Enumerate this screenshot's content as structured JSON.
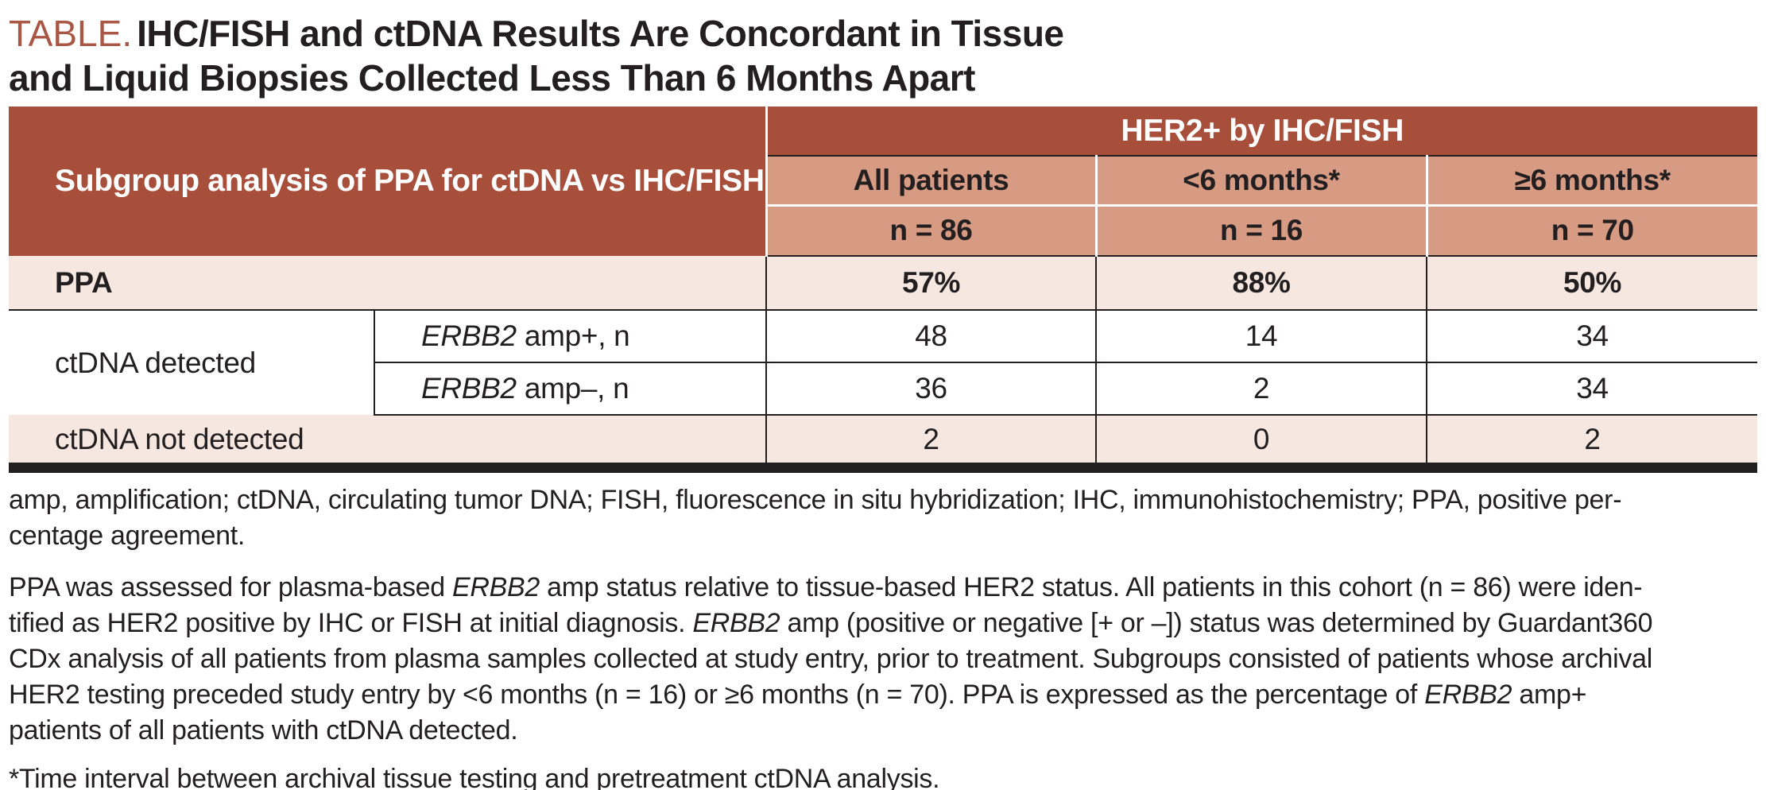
{
  "colors": {
    "header_dark": "#A84F3C",
    "header_salmon": "#D69B82",
    "row_pink": "#F6E8E1",
    "title_red": "#AA5644",
    "text": "#231F20"
  },
  "title": {
    "label": "TABLE.",
    "line1": "IHC/FISH and ctDNA Results Are Concordant in Tissue",
    "line2": "and Liquid Biopsies Collected Less Than 6 Months Apart"
  },
  "table": {
    "left_header": "Subgroup analysis of PPA for ctDNA vs IHC/FISH",
    "span_header": "HER2+ by IHC/FISH",
    "col_headers": [
      "All patients",
      "<6 months*",
      "≥6 months*"
    ],
    "col_ns": [
      "n = 86",
      "n = 16",
      "n = 70"
    ],
    "ppa_row": {
      "label": "PPA",
      "values": [
        "57%",
        "88%",
        "50%"
      ]
    },
    "detected_group_label": "ctDNA detected",
    "detected_rows": [
      {
        "label_segments": [
          {
            "t": "ERBB2",
            "i": true
          },
          {
            "t": " amp+, n",
            "i": false
          }
        ],
        "values": [
          "48",
          "14",
          "34"
        ]
      },
      {
        "label_segments": [
          {
            "t": "ERBB2",
            "i": true
          },
          {
            "t": " amp–, n",
            "i": false
          }
        ],
        "values": [
          "36",
          "2",
          "34"
        ]
      }
    ],
    "not_detected_row": {
      "label": "ctDNA not detected",
      "values": [
        "2",
        "0",
        "2"
      ]
    }
  },
  "footnotes": {
    "abbrev_lines": [
      [
        {
          "t": "amp, amplification; ctDNA, circulating tumor DNA; FISH, fluorescence in situ hybridization; IHC, immunohistochemistry; PPA, positive per-",
          "i": false
        }
      ],
      [
        {
          "t": "centage agreement.",
          "i": false
        }
      ]
    ],
    "para_lines": [
      [
        {
          "t": "PPA was assessed for plasma-based ",
          "i": false
        },
        {
          "t": "ERBB2",
          "i": true
        },
        {
          "t": " amp status relative to tissue-based HER2 status. All patients in this cohort (n = 86) were iden-",
          "i": false
        }
      ],
      [
        {
          "t": "tified as HER2 positive by IHC or FISH at initial diagnosis. ",
          "i": false
        },
        {
          "t": "ERBB2",
          "i": true
        },
        {
          "t": " amp (positive or negative [+ or –]) status was determined by Guardant360",
          "i": false
        }
      ],
      [
        {
          "t": "CDx analysis of all patients from plasma samples collected at study entry, prior to treatment. Subgroups consisted of patients whose archival",
          "i": false
        }
      ],
      [
        {
          "t": "HER2 testing preceded study entry by <6 months (n = 16) or ≥6 months (n = 70). PPA is expressed as the percentage of ",
          "i": false
        },
        {
          "t": "ERBB2",
          "i": true
        },
        {
          "t": " amp+",
          "i": false
        }
      ],
      [
        {
          "t": "patients of all patients with ctDNA detected.",
          "i": false
        }
      ]
    ],
    "star_note": "*Time interval between archival tissue testing and pretreatment ctDNA analysis."
  }
}
